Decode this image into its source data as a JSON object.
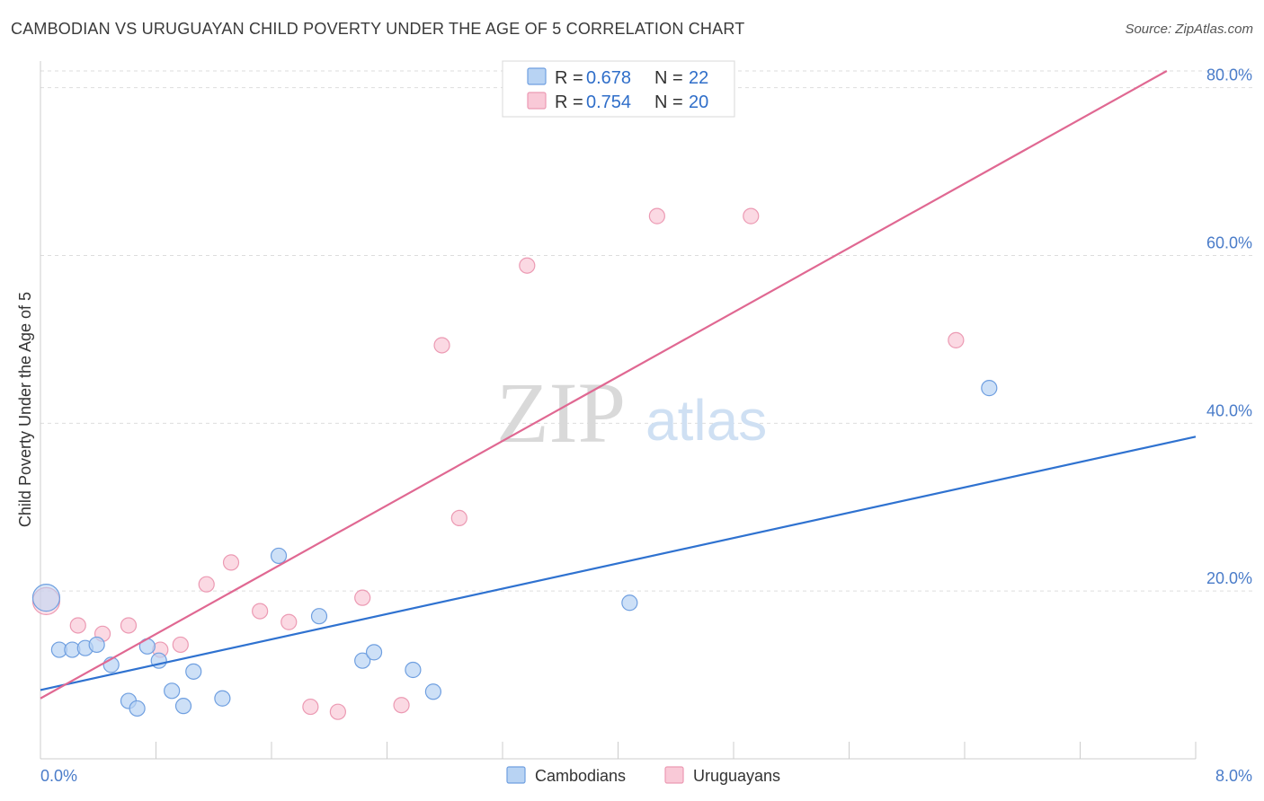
{
  "header": {
    "title": "CAMBODIAN VS URUGUAYAN CHILD POVERTY UNDER THE AGE OF 5 CORRELATION CHART",
    "source": "Source: ZipAtlas.com"
  },
  "watermark": {
    "zip": "ZIP",
    "atlas": "atlas"
  },
  "colors": {
    "cambodian_fill": "#b8d3f3",
    "cambodian_stroke": "#6f9fe0",
    "cambodian_line": "#2f72d0",
    "uruguayan_fill": "#f9c9d7",
    "uruguayan_stroke": "#ec9ab3",
    "uruguayan_line": "#e06892",
    "grid": "#dddddd"
  },
  "legend": {
    "rows": [
      {
        "r_label": "R = ",
        "r_value": "0.678",
        "n_label": "N = ",
        "n_value": "22"
      },
      {
        "r_label": "R = ",
        "r_value": "0.754",
        "n_label": "N = ",
        "n_value": "20"
      }
    ]
  },
  "chart_data": {
    "type": "scatter",
    "title": "CAMBODIAN VS URUGUAYAN CHILD POVERTY UNDER THE AGE OF 5 CORRELATION CHART",
    "ylabel": "Child Poverty Under the Age of 5",
    "xlabel": "",
    "xlim": [
      0,
      8
    ],
    "ylim": [
      0,
      82
    ],
    "x_tick_labels": [
      "0.0%",
      "8.0%"
    ],
    "y_ticks": [
      20,
      40,
      60,
      80
    ],
    "y_tick_labels": [
      "20.0%",
      "40.0%",
      "60.0%",
      "80.0%"
    ],
    "grid": true,
    "series": [
      {
        "name": "Cambodians",
        "r": 0.678,
        "n": 22,
        "points": [
          [
            0.04,
            19.2
          ],
          [
            0.13,
            13.0
          ],
          [
            0.22,
            13.0
          ],
          [
            0.31,
            13.2
          ],
          [
            0.39,
            13.6
          ],
          [
            0.49,
            11.2
          ],
          [
            0.61,
            6.9
          ],
          [
            0.67,
            6.0
          ],
          [
            0.74,
            13.4
          ],
          [
            0.82,
            11.7
          ],
          [
            0.91,
            8.1
          ],
          [
            0.99,
            6.3
          ],
          [
            1.06,
            10.4
          ],
          [
            1.26,
            7.2
          ],
          [
            1.65,
            24.2
          ],
          [
            1.93,
            17.0
          ],
          [
            2.23,
            11.7
          ],
          [
            2.31,
            12.7
          ],
          [
            2.58,
            10.6
          ],
          [
            2.72,
            8.0
          ],
          [
            4.08,
            18.6
          ],
          [
            6.57,
            44.2
          ]
        ],
        "trend": [
          [
            0.0,
            8.2
          ],
          [
            8.0,
            38.4
          ]
        ]
      },
      {
        "name": "Uruguayans",
        "r": 0.754,
        "n": 20,
        "points": [
          [
            0.04,
            18.8
          ],
          [
            0.26,
            15.9
          ],
          [
            0.43,
            14.9
          ],
          [
            0.61,
            15.9
          ],
          [
            0.83,
            13.0
          ],
          [
            0.97,
            13.6
          ],
          [
            1.15,
            20.8
          ],
          [
            1.32,
            23.4
          ],
          [
            1.52,
            17.6
          ],
          [
            1.72,
            16.3
          ],
          [
            1.87,
            6.2
          ],
          [
            2.06,
            5.6
          ],
          [
            2.23,
            19.2
          ],
          [
            2.5,
            6.4
          ],
          [
            2.78,
            49.3
          ],
          [
            2.9,
            28.7
          ],
          [
            3.37,
            58.8
          ],
          [
            4.27,
            64.7
          ],
          [
            4.92,
            64.7
          ],
          [
            6.34,
            49.9
          ]
        ],
        "trend": [
          [
            0.0,
            7.2
          ],
          [
            7.8,
            82.0
          ]
        ]
      }
    ]
  }
}
